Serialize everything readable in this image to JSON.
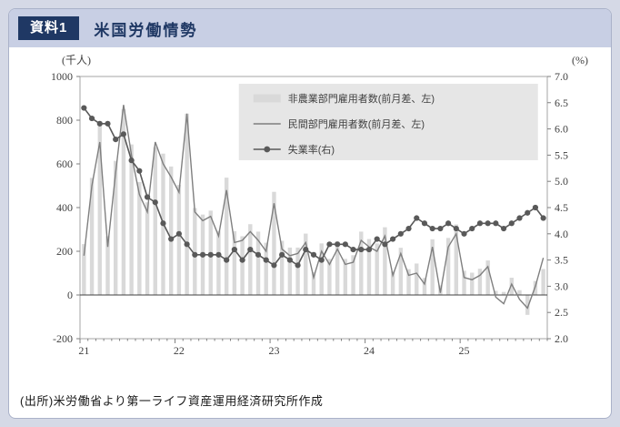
{
  "header": {
    "badge": "資料1",
    "title": "米国労働情勢"
  },
  "source_note": "(出所)米労働省より第一ライフ資産運用経済研究所作成",
  "chart_data": {
    "type": "bar",
    "title": "米国労働情勢",
    "frequency": "monthly",
    "start": "2021-01",
    "left_axis": {
      "unit": "(千人)",
      "min": -200,
      "max": 1000,
      "step": 200,
      "ticks": [
        "1000",
        "800",
        "600",
        "400",
        "200",
        "0",
        "-200"
      ]
    },
    "right_axis": {
      "unit": "(%)",
      "min": 2.0,
      "max": 7.0,
      "step": 0.5,
      "ticks": [
        "7.0",
        "6.5",
        "6.0",
        "5.5",
        "5.0",
        "4.5",
        "4.0",
        "3.5",
        "3.0",
        "2.5",
        "2.0"
      ]
    },
    "x_axis": {
      "tick_labels": [
        "21",
        "22",
        "23",
        "24",
        "25"
      ],
      "tick_month_index": [
        0,
        12,
        24,
        36,
        48
      ]
    },
    "legend": [
      {
        "label": "非農業部門雇用者数(前月差、左)",
        "type": "bar",
        "color": "#d9d9d9"
      },
      {
        "label": "民間部門雇用者数(前月差、左)",
        "type": "line",
        "color": "#7f7f7f"
      },
      {
        "label": "失業率(右)",
        "type": "line-marker",
        "color": "#595959"
      }
    ],
    "colors": {
      "bar": "#d9d9d9",
      "private_line": "#7f7f7f",
      "unemployment": "#595959",
      "zero_line": "#404040",
      "plot_border": "#a6a6a6"
    },
    "series": [
      {
        "name": "非農業部門雇用者数(前月差、左)",
        "type": "bar",
        "axis": "left",
        "values": [
          233,
          536,
          785,
          269,
          614,
          850,
          689,
          517,
          424,
          677,
          647,
          588,
          504,
          830,
          398,
          368,
          386,
          293,
          537,
          292,
          269,
          324,
          290,
          239,
          472,
          248,
          217,
          217,
          281,
          105,
          236,
          165,
          246,
          165,
          182,
          290,
          256,
          236,
          310,
          108,
          216,
          118,
          144,
          78,
          255,
          44,
          261,
          323,
          111,
          102,
          120,
          158,
          19,
          14,
          79,
          22,
          -91,
          64,
          119
        ]
      },
      {
        "name": "民間部門雇用者数(前月差、左)",
        "type": "line",
        "axis": "left",
        "values": [
          180,
          500,
          700,
          220,
          560,
          870,
          640,
          460,
          380,
          700,
          600,
          540,
          470,
          830,
          380,
          340,
          360,
          270,
          480,
          240,
          250,
          290,
          250,
          200,
          420,
          210,
          180,
          190,
          240,
          80,
          200,
          140,
          210,
          140,
          150,
          250,
          220,
          200,
          270,
          90,
          190,
          90,
          100,
          50,
          220,
          10,
          220,
          280,
          80,
          70,
          90,
          130,
          -10,
          -40,
          50,
          -20,
          -60,
          40,
          170
        ]
      },
      {
        "name": "失業率(右)",
        "type": "line",
        "axis": "right",
        "values": [
          6.4,
          6.2,
          6.1,
          6.1,
          5.8,
          5.9,
          5.4,
          5.2,
          4.7,
          4.6,
          4.2,
          3.9,
          4.0,
          3.8,
          3.6,
          3.6,
          3.6,
          3.6,
          3.5,
          3.7,
          3.5,
          3.7,
          3.6,
          3.5,
          3.4,
          3.6,
          3.5,
          3.4,
          3.7,
          3.6,
          3.5,
          3.8,
          3.8,
          3.8,
          3.7,
          3.7,
          3.7,
          3.9,
          3.8,
          3.9,
          4.0,
          4.1,
          4.3,
          4.2,
          4.1,
          4.1,
          4.2,
          4.1,
          4.0,
          4.1,
          4.2,
          4.2,
          4.2,
          4.1,
          4.2,
          4.3,
          4.4,
          4.5,
          4.3
        ]
      }
    ]
  }
}
